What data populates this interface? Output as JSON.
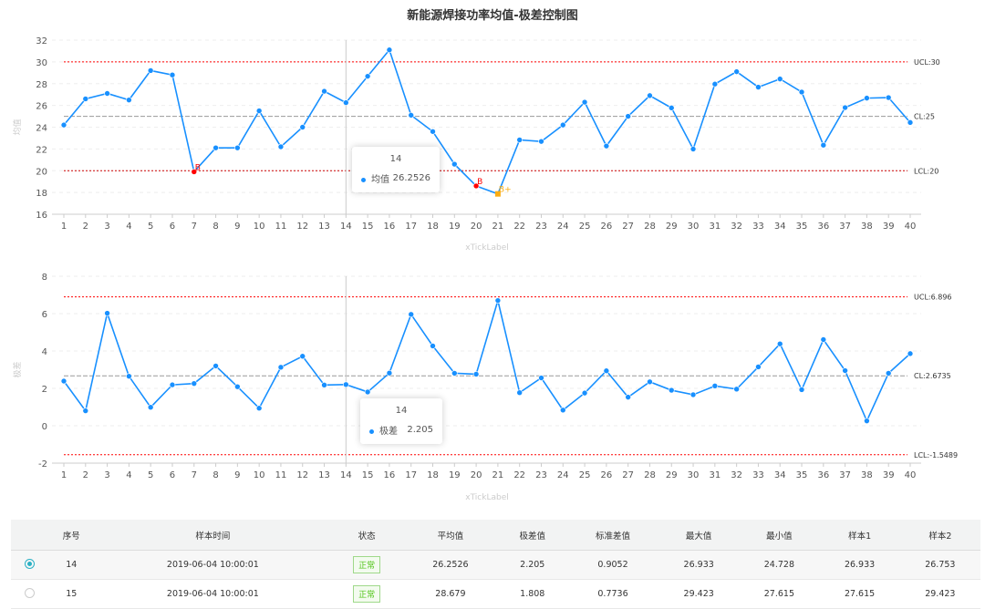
{
  "title": "新能源焊接功率均值-极差控制图",
  "chart_data": [
    {
      "type": "line",
      "ylabel": "均值",
      "xlabel": "xTickLabel",
      "ylim": [
        16,
        32
      ],
      "yticks": [
        16,
        18,
        20,
        22,
        24,
        26,
        28,
        30,
        32
      ],
      "grid": true,
      "x": [
        1,
        2,
        3,
        4,
        5,
        6,
        7,
        8,
        9,
        10,
        11,
        12,
        13,
        14,
        15,
        16,
        17,
        18,
        19,
        20,
        21,
        22,
        23,
        24,
        25,
        26,
        27,
        28,
        29,
        30,
        31,
        32,
        33,
        34,
        35,
        36,
        37,
        38,
        39,
        40
      ],
      "series": [
        {
          "name": "均值",
          "color": "#1890ff",
          "values": [
            24.2,
            26.6,
            27.1,
            26.5,
            29.2,
            28.8,
            19.9,
            22.1,
            22.1,
            25.5,
            22.2,
            24.0,
            27.3,
            26.2526,
            28.679,
            31.1,
            25.1,
            23.6,
            20.6,
            18.6,
            17.87,
            22.83,
            22.69,
            24.2,
            26.3,
            22.27,
            25.0,
            26.9,
            25.77,
            21.99,
            27.96,
            29.1,
            27.68,
            28.43,
            27.23,
            22.35,
            25.8,
            26.67,
            26.72,
            24.43
          ]
        }
      ],
      "control_lines": [
        {
          "label": "UCL:30",
          "value": 30,
          "color": "#ff0000"
        },
        {
          "label": "CL:25",
          "value": 25,
          "color": "#999999"
        },
        {
          "label": "LCL:20",
          "value": 20,
          "color": "#cc0000"
        }
      ],
      "annotations": [
        {
          "x": 7,
          "text": "B",
          "color": "#ff0000"
        },
        {
          "x": 20,
          "text": "B",
          "color": "#ff0000"
        },
        {
          "x": 21,
          "text": "B+",
          "color": "#faad14"
        }
      ],
      "tooltip": {
        "title": "14",
        "name": "均值",
        "value": "26.2526"
      }
    },
    {
      "type": "line",
      "ylabel": "极差",
      "xlabel": "xTickLabel",
      "ylim": [
        -2,
        8
      ],
      "yticks": [
        -2,
        0,
        2,
        4,
        6,
        8
      ],
      "grid": true,
      "x": [
        1,
        2,
        3,
        4,
        5,
        6,
        7,
        8,
        9,
        10,
        11,
        12,
        13,
        14,
        15,
        16,
        17,
        18,
        19,
        20,
        21,
        22,
        23,
        24,
        25,
        26,
        27,
        28,
        29,
        30,
        31,
        32,
        33,
        34,
        35,
        36,
        37,
        38,
        39,
        40
      ],
      "series": [
        {
          "name": "极差",
          "color": "#1890ff",
          "values": [
            2.39,
            0.8,
            6.02,
            2.65,
            0.99,
            2.19,
            2.26,
            3.2,
            2.09,
            0.94,
            3.13,
            3.72,
            2.18,
            2.205,
            1.808,
            2.82,
            5.96,
            4.27,
            2.81,
            2.76,
            6.7,
            1.77,
            2.56,
            0.84,
            1.75,
            2.94,
            1.53,
            2.35,
            1.9,
            1.66,
            2.13,
            1.96,
            3.15,
            4.38,
            1.93,
            4.61,
            2.95,
            0.26,
            2.81,
            3.86
          ]
        }
      ],
      "control_lines": [
        {
          "label": "UCL:6.896",
          "value": 6.896,
          "color": "#ff0000"
        },
        {
          "label": "CL:2.6735",
          "value": 2.6735,
          "color": "#999999"
        },
        {
          "label": "LCL:-1.5489",
          "value": -1.5489,
          "color": "#ff0000"
        }
      ],
      "annotations": [],
      "tooltip": {
        "title": "14",
        "name": "极差",
        "value": "2.205"
      }
    }
  ],
  "table": {
    "headers": [
      "序号",
      "样本时间",
      "状态",
      "平均值",
      "极差值",
      "标准差值",
      "最大值",
      "最小值",
      "样本1",
      "样本2"
    ],
    "rows": [
      {
        "selected": true,
        "cells": [
          "14",
          "2019-06-04 10:00:01",
          "正常",
          "26.2526",
          "2.205",
          "0.9052",
          "26.933",
          "24.728",
          "26.933",
          "26.753"
        ]
      },
      {
        "selected": false,
        "cells": [
          "15",
          "2019-06-04 10:00:01",
          "正常",
          "28.679",
          "1.808",
          "0.7736",
          "29.423",
          "27.615",
          "27.615",
          "29.423"
        ]
      }
    ]
  }
}
